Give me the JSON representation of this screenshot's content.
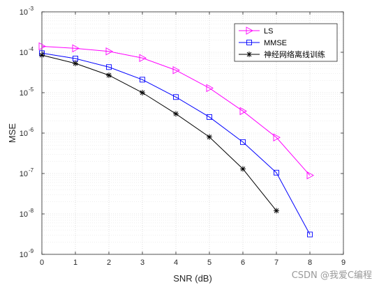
{
  "chart_data": {
    "type": "line",
    "xlabel": "SNR (dB)",
    "ylabel": "MSE",
    "xlim": [
      0,
      9
    ],
    "ylim": [
      1e-09,
      0.001
    ],
    "yscale": "log",
    "xticks": [
      "0",
      "1",
      "2",
      "3",
      "4",
      "5",
      "6",
      "7",
      "8",
      "9"
    ],
    "yticks": [
      {
        "base": "10",
        "exp": "-9",
        "value": 1e-09
      },
      {
        "base": "10",
        "exp": "-8",
        "value": 1e-08
      },
      {
        "base": "10",
        "exp": "-7",
        "value": 1e-07
      },
      {
        "base": "10",
        "exp": "-6",
        "value": 1e-06
      },
      {
        "base": "10",
        "exp": "-5",
        "value": 1e-05
      },
      {
        "base": "10",
        "exp": "-4",
        "value": 0.0001
      },
      {
        "base": "10",
        "exp": "-3",
        "value": 0.001
      }
    ],
    "grid": true,
    "minor_grid": true,
    "legend_position": "top-right",
    "series": [
      {
        "name": "LS",
        "color": "#ff00ff",
        "marker": "triangle-right",
        "x": [
          0,
          1,
          2,
          3,
          4,
          5,
          6,
          7,
          8
        ],
        "y": [
          0.00014,
          0.000125,
          0.000105,
          7.2e-05,
          3.6e-05,
          1.3e-05,
          3.5e-06,
          7.8e-07,
          9e-08
        ]
      },
      {
        "name": "MMSE",
        "color": "#0000ff",
        "marker": "square",
        "x": [
          0,
          1,
          2,
          3,
          4,
          5,
          6,
          7,
          8
        ],
        "y": [
          9.5e-05,
          7e-05,
          4.3e-05,
          2.1e-05,
          7.8e-06,
          2.5e-06,
          6e-07,
          1.05e-07,
          3.1e-09
        ]
      },
      {
        "name": "神经网络离线训练",
        "color": "#000000",
        "marker": "asterisk",
        "x": [
          0,
          1,
          2,
          3,
          4,
          5,
          6,
          7
        ],
        "y": [
          8.5e-05,
          5.3e-05,
          2.7e-05,
          1e-05,
          3e-06,
          8e-07,
          1.3e-07,
          1.2e-08
        ]
      }
    ]
  },
  "watermark": "CSDN @我爱C编程"
}
